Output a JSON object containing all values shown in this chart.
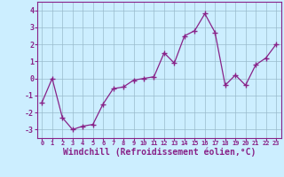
{
  "x": [
    0,
    1,
    2,
    3,
    4,
    5,
    6,
    7,
    8,
    9,
    10,
    11,
    12,
    13,
    14,
    15,
    16,
    17,
    18,
    19,
    20,
    21,
    22,
    23
  ],
  "y": [
    -1.4,
    0.0,
    -2.3,
    -3.0,
    -2.8,
    -2.7,
    -1.5,
    -0.6,
    -0.5,
    -0.1,
    0.0,
    0.1,
    1.5,
    0.9,
    2.5,
    2.8,
    3.8,
    2.7,
    -0.4,
    0.2,
    -0.4,
    0.8,
    1.2,
    2.0
  ],
  "line_color": "#882288",
  "marker": "+",
  "marker_size": 4,
  "linewidth": 0.9,
  "bg_color": "#cceeff",
  "plot_bg_color": "#cceeff",
  "grid_color": "#99bbcc",
  "xlabel": "Windchill (Refroidissement éolien,°C)",
  "xlabel_color": "#882288",
  "xlim": [
    -0.5,
    23.5
  ],
  "ylim": [
    -3.5,
    4.5
  ],
  "yticks": [
    -3,
    -2,
    -1,
    0,
    1,
    2,
    3,
    4
  ],
  "xticks": [
    0,
    1,
    2,
    3,
    4,
    5,
    6,
    7,
    8,
    9,
    10,
    11,
    12,
    13,
    14,
    15,
    16,
    17,
    18,
    19,
    20,
    21,
    22,
    23
  ],
  "tick_color": "#882288",
  "tick_fontsize": 5.0,
  "xlabel_fontsize": 7.0,
  "spine_color": "#882288"
}
